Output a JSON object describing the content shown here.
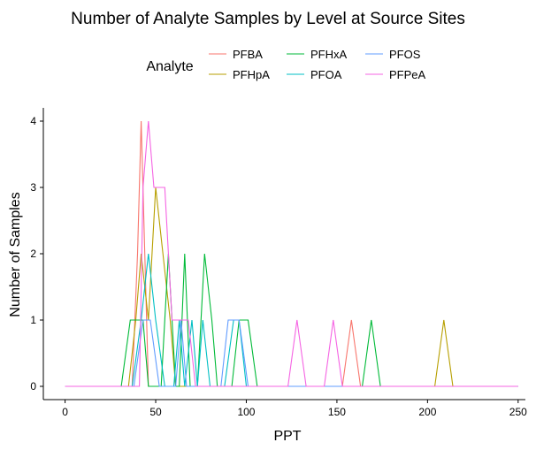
{
  "chart_data": {
    "type": "line",
    "title": "Number of Analyte Samples by Level at Source Sites",
    "xlabel": "PPT",
    "ylabel": "Number of Samples",
    "xlim": [
      -12,
      254
    ],
    "ylim": [
      -0.2,
      4.2
    ],
    "xticks": [
      0,
      50,
      100,
      150,
      200,
      250
    ],
    "yticks": [
      0,
      1,
      2,
      3,
      4
    ],
    "grid": false,
    "legend": {
      "title": "Analyte",
      "position": "top"
    },
    "series": [
      {
        "name": "PFBA",
        "color": "#F8766D",
        "x": [
          0,
          37,
          40,
          42,
          44,
          46,
          49,
          153,
          158,
          163,
          250
        ],
        "y": [
          0,
          0,
          2,
          4,
          2,
          0,
          0,
          0,
          1,
          0,
          0
        ]
      },
      {
        "name": "PFHpA",
        "color": "#B79F00",
        "x": [
          0,
          35,
          39,
          42,
          46,
          50,
          54,
          58,
          61,
          204,
          209,
          214,
          250
        ],
        "y": [
          0,
          0,
          1,
          2,
          1,
          3,
          2,
          1,
          0,
          0,
          1,
          0,
          0
        ]
      },
      {
        "name": "PFHxA",
        "color": "#00BA38",
        "x": [
          0,
          31,
          36,
          43,
          46,
          53,
          57,
          61,
          63,
          66,
          69,
          71,
          73,
          77,
          81,
          84,
          87,
          92,
          96,
          101,
          106,
          164,
          169,
          174,
          250
        ],
        "y": [
          0,
          0,
          1,
          1,
          0,
          0,
          2,
          0,
          0,
          2,
          0,
          0,
          0,
          2,
          1,
          0,
          0,
          0,
          1,
          1,
          0,
          0,
          1,
          0,
          0
        ]
      },
      {
        "name": "PFOA",
        "color": "#00BFC4",
        "x": [
          0,
          37,
          42,
          46,
          50,
          55,
          60,
          63,
          66,
          70,
          73,
          76,
          80,
          84,
          88,
          93,
          96,
          100,
          104,
          250
        ],
        "y": [
          0,
          0,
          1,
          2,
          1,
          0,
          0,
          1,
          0,
          1,
          0,
          1,
          0,
          0,
          0,
          1,
          1,
          0,
          0,
          0
        ]
      },
      {
        "name": "PFOS",
        "color": "#619CFF",
        "x": [
          0,
          38,
          43,
          47,
          52,
          57,
          61,
          64,
          67,
          71,
          74,
          86,
          90,
          96,
          101,
          250
        ],
        "y": [
          0,
          0,
          1,
          1,
          0,
          0,
          0,
          1,
          0,
          0,
          0,
          0,
          1,
          1,
          0,
          0
        ]
      },
      {
        "name": "PFPeA",
        "color": "#F564E3",
        "x": [
          0,
          38,
          41,
          43,
          46,
          49,
          52,
          55,
          57,
          59,
          62,
          64,
          68,
          72,
          76,
          123,
          128,
          133,
          143,
          148,
          153,
          250
        ],
        "y": [
          0,
          0,
          0,
          3,
          4,
          3,
          3,
          3,
          2,
          1,
          1,
          1,
          1,
          0,
          0,
          0,
          1,
          0,
          0,
          1,
          0,
          0
        ]
      }
    ]
  }
}
